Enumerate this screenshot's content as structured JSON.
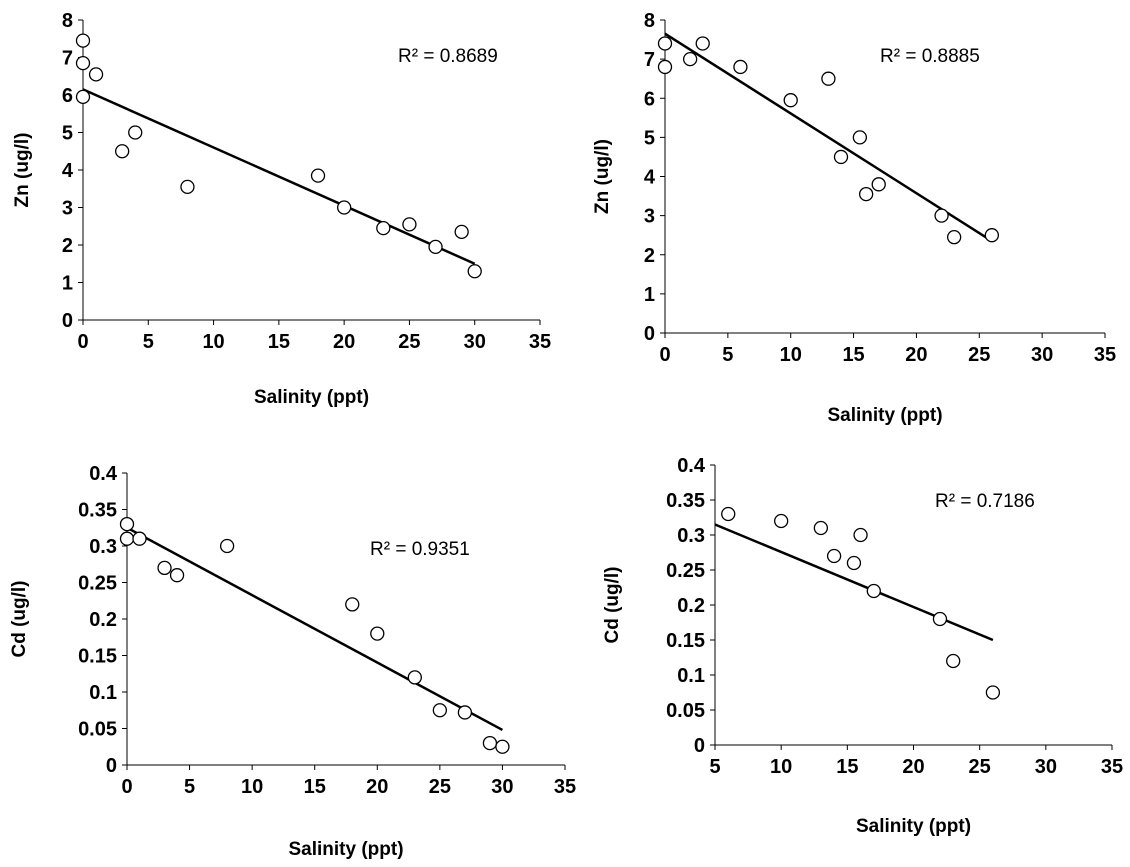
{
  "chart_data": [
    {
      "type": "scatter",
      "title": "",
      "xlabel": "Salinity (ppt)",
      "ylabel": "Zn (ug/l)",
      "xlim": [
        0,
        35
      ],
      "ylim": [
        0,
        8
      ],
      "xticks": [
        "0",
        "5",
        "10",
        "15",
        "20",
        "25",
        "30",
        "35"
      ],
      "yticks": [
        "0",
        "1",
        "2",
        "3",
        "4",
        "5",
        "6",
        "7",
        "8"
      ],
      "grid": false,
      "legend": "none",
      "r2_label": "R² = 0.8689",
      "points": [
        {
          "x": 0,
          "y": 7.45
        },
        {
          "x": 0,
          "y": 6.85
        },
        {
          "x": 0,
          "y": 5.95
        },
        {
          "x": 1,
          "y": 6.55
        },
        {
          "x": 3,
          "y": 4.5
        },
        {
          "x": 4,
          "y": 5.0
        },
        {
          "x": 8,
          "y": 3.55
        },
        {
          "x": 18,
          "y": 3.85
        },
        {
          "x": 20,
          "y": 3.0
        },
        {
          "x": 23,
          "y": 2.45
        },
        {
          "x": 25,
          "y": 2.55
        },
        {
          "x": 27,
          "y": 1.95
        },
        {
          "x": 29,
          "y": 2.35
        },
        {
          "x": 30,
          "y": 1.3
        }
      ],
      "trendline": {
        "x": [
          0,
          30
        ],
        "y": [
          6.15,
          1.5
        ]
      }
    },
    {
      "type": "scatter",
      "title": "",
      "xlabel": "Salinity (ppt)",
      "ylabel": "Zn (ug/l)",
      "xlim": [
        0,
        35
      ],
      "ylim": [
        0,
        8
      ],
      "xticks": [
        "0",
        "5",
        "10",
        "15",
        "20",
        "25",
        "30",
        "35"
      ],
      "yticks": [
        "0",
        "1",
        "2",
        "3",
        "4",
        "5",
        "6",
        "7",
        "8"
      ],
      "grid": false,
      "legend": "none",
      "r2_label": "R² = 0.8885",
      "points": [
        {
          "x": 0,
          "y": 7.4
        },
        {
          "x": 0,
          "y": 6.8
        },
        {
          "x": 2,
          "y": 7.0
        },
        {
          "x": 3,
          "y": 7.4
        },
        {
          "x": 6,
          "y": 6.8
        },
        {
          "x": 10,
          "y": 5.95
        },
        {
          "x": 13,
          "y": 6.5
        },
        {
          "x": 14,
          "y": 4.5
        },
        {
          "x": 15.5,
          "y": 5.0
        },
        {
          "x": 16,
          "y": 3.55
        },
        {
          "x": 17,
          "y": 3.8
        },
        {
          "x": 22,
          "y": 3.0
        },
        {
          "x": 23,
          "y": 2.45
        },
        {
          "x": 26,
          "y": 2.5
        }
      ],
      "trendline": {
        "x": [
          0,
          26
        ],
        "y": [
          7.65,
          2.35
        ]
      }
    },
    {
      "type": "scatter",
      "title": "",
      "xlabel": "Salinity (ppt)",
      "ylabel": "Cd (ug/l)",
      "xlim": [
        0,
        35
      ],
      "ylim": [
        0,
        0.4
      ],
      "xticks": [
        "0",
        "5",
        "10",
        "15",
        "20",
        "25",
        "30",
        "35"
      ],
      "yticks": [
        "0",
        "0.05",
        "0.1",
        "0.15",
        "0.2",
        "0.25",
        "0.3",
        "0.35",
        "0.4"
      ],
      "grid": false,
      "legend": "none",
      "r2_label": "R² = 0.9351",
      "points": [
        {
          "x": 0,
          "y": 0.33
        },
        {
          "x": 0,
          "y": 0.31
        },
        {
          "x": 1,
          "y": 0.31
        },
        {
          "x": 3,
          "y": 0.27
        },
        {
          "x": 4,
          "y": 0.26
        },
        {
          "x": 8,
          "y": 0.3
        },
        {
          "x": 18,
          "y": 0.22
        },
        {
          "x": 20,
          "y": 0.18
        },
        {
          "x": 23,
          "y": 0.12
        },
        {
          "x": 25,
          "y": 0.075
        },
        {
          "x": 27,
          "y": 0.072
        },
        {
          "x": 29,
          "y": 0.03
        },
        {
          "x": 30,
          "y": 0.025
        }
      ],
      "trendline": {
        "x": [
          0,
          30
        ],
        "y": [
          0.325,
          0.048
        ]
      }
    },
    {
      "type": "scatter",
      "title": "",
      "xlabel": "Salinity (ppt)",
      "ylabel": "Cd (ug/l)",
      "xlim": [
        5,
        35
      ],
      "ylim": [
        0,
        0.4
      ],
      "xticks": [
        "5",
        "10",
        "15",
        "20",
        "25",
        "30",
        "35"
      ],
      "yticks": [
        "0",
        "0.05",
        "0.1",
        "0.15",
        "0.2",
        "0.25",
        "0.3",
        "0.35",
        "0.4"
      ],
      "grid": false,
      "legend": "none",
      "r2_label": "R² = 0.7186",
      "points": [
        {
          "x": 6,
          "y": 0.33
        },
        {
          "x": 10,
          "y": 0.32
        },
        {
          "x": 13,
          "y": 0.31
        },
        {
          "x": 14,
          "y": 0.27
        },
        {
          "x": 15.5,
          "y": 0.26
        },
        {
          "x": 16,
          "y": 0.3
        },
        {
          "x": 17,
          "y": 0.22
        },
        {
          "x": 22,
          "y": 0.18
        },
        {
          "x": 23,
          "y": 0.12
        },
        {
          "x": 26,
          "y": 0.075
        }
      ],
      "trendline": {
        "x": [
          5,
          26
        ],
        "y": [
          0.315,
          0.15
        ]
      }
    }
  ]
}
